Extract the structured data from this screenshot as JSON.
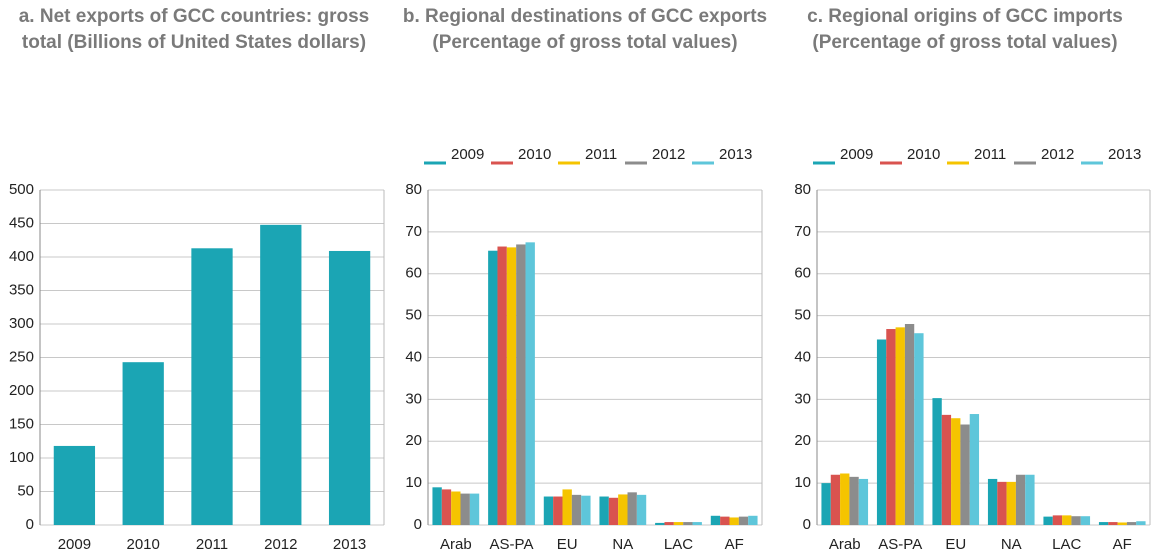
{
  "chart_data": [
    {
      "type": "bar",
      "title": "a.  Net exports of GCC countries: gross total (Billions of United States dollars)",
      "categories": [
        "2009",
        "2010",
        "2011",
        "2012",
        "2013"
      ],
      "values": [
        118,
        243,
        413,
        448,
        409
      ],
      "color": "#1ba5b4",
      "ylim": [
        0,
        500
      ],
      "yticks": [
        0,
        50,
        100,
        150,
        200,
        250,
        300,
        350,
        400,
        450,
        500
      ],
      "grid": true
    },
    {
      "type": "grouped_bar",
      "title": "b.  Regional destinations of GCC exports (Percentage of gross total values)",
      "categories": [
        "Arab",
        "AS-PA",
        "EU",
        "NA",
        "LAC",
        "AF"
      ],
      "series": [
        {
          "name": "2009",
          "color": "#1ba5b4",
          "values": [
            9,
            65.5,
            6.8,
            6.8,
            0.5,
            2.2
          ]
        },
        {
          "name": "2010",
          "color": "#d9534f",
          "values": [
            8.5,
            66.5,
            6.8,
            6.5,
            0.7,
            2
          ]
        },
        {
          "name": "2011",
          "color": "#f5c400",
          "values": [
            8,
            66.3,
            8.5,
            7.3,
            0.7,
            1.8
          ]
        },
        {
          "name": "2012",
          "color": "#8c8c8c",
          "values": [
            7.5,
            67,
            7.2,
            7.8,
            0.7,
            2
          ]
        },
        {
          "name": "2013",
          "color": "#5ec6da",
          "values": [
            7.5,
            67.5,
            7,
            7.2,
            0.7,
            2.2
          ]
        }
      ],
      "ylim": [
        0,
        80
      ],
      "yticks": [
        0,
        10,
        20,
        30,
        40,
        50,
        60,
        70,
        80
      ],
      "grid": true,
      "legend": "top"
    },
    {
      "type": "grouped_bar",
      "title": "c.  Regional origins of GCC imports (Percentage of gross total values)",
      "categories": [
        "Arab",
        "AS-PA",
        "EU",
        "NA",
        "LAC",
        "AF"
      ],
      "series": [
        {
          "name": "2009",
          "color": "#1ba5b4",
          "values": [
            10,
            44.3,
            30.3,
            11,
            2,
            0.7
          ]
        },
        {
          "name": "2010",
          "color": "#d9534f",
          "values": [
            12,
            46.8,
            26.3,
            10.3,
            2.3,
            0.7
          ]
        },
        {
          "name": "2011",
          "color": "#f5c400",
          "values": [
            12.3,
            47.2,
            25.5,
            10.3,
            2.3,
            0.6
          ]
        },
        {
          "name": "2012",
          "color": "#8c8c8c",
          "values": [
            11.5,
            48,
            24,
            12,
            2.1,
            0.7
          ]
        },
        {
          "name": "2013",
          "color": "#5ec6da",
          "values": [
            11,
            45.8,
            26.5,
            12,
            2.1,
            0.9
          ]
        }
      ],
      "ylim": [
        0,
        80
      ],
      "yticks": [
        0,
        10,
        20,
        30,
        40,
        50,
        60,
        70,
        80
      ],
      "grid": true,
      "legend": "top"
    }
  ]
}
